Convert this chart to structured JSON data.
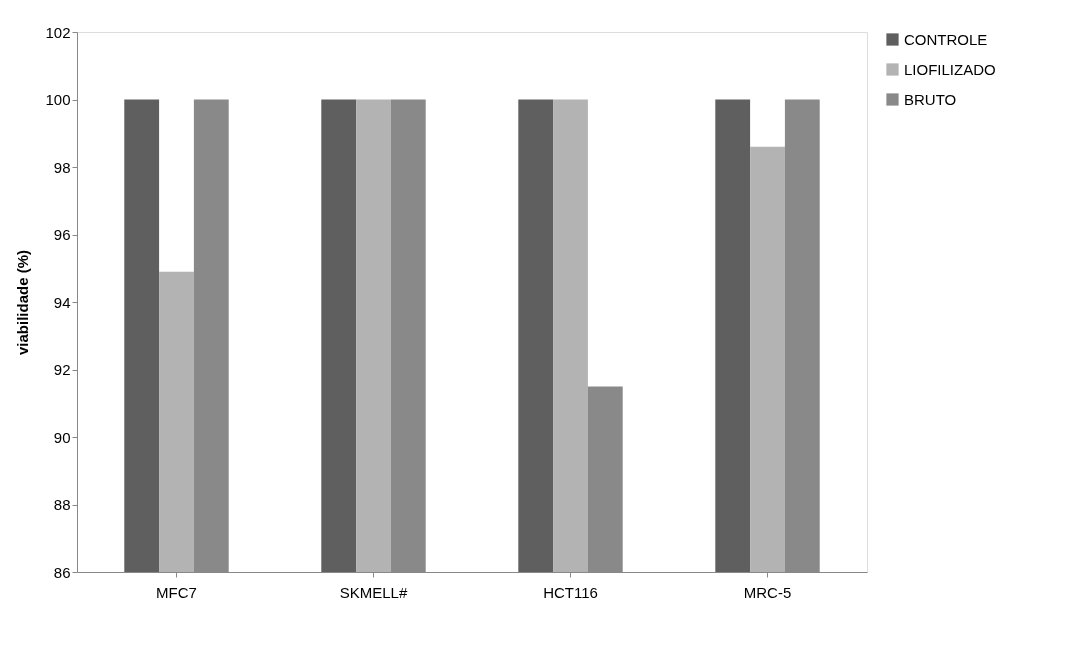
{
  "chart_data": {
    "type": "bar",
    "ylabel": "viabilidade (%)",
    "categories": [
      "MFC7",
      "SKMELL#",
      "HCT116",
      "MRC-5"
    ],
    "series": [
      {
        "name": "CONTROLE",
        "color": "#5f5f5f",
        "values": [
          100,
          100,
          100,
          100
        ]
      },
      {
        "name": "LIOFILIZADO",
        "color": "#b3b3b3",
        "values": [
          94.9,
          100,
          100,
          98.6
        ]
      },
      {
        "name": "BRUTO",
        "color": "#898989",
        "values": [
          100,
          100,
          91.5,
          100
        ]
      }
    ],
    "ylim": [
      86,
      102
    ],
    "yticks": [
      86,
      88,
      90,
      92,
      94,
      96,
      98,
      100,
      102
    ],
    "grid": false,
    "legend": "right"
  }
}
